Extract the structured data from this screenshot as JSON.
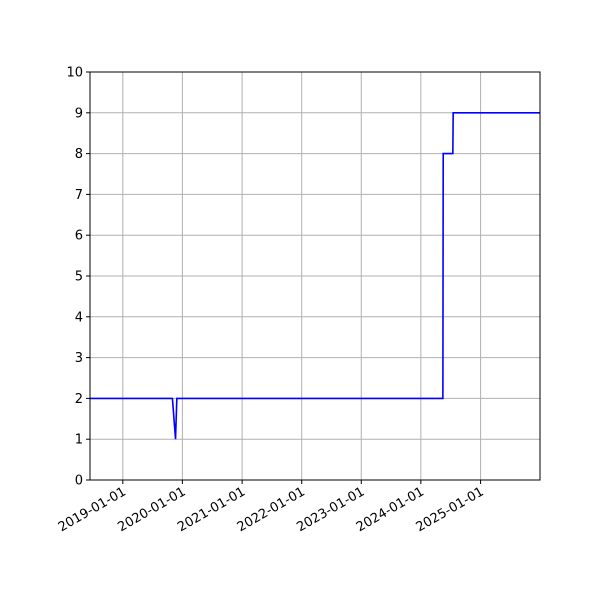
{
  "chart_data": {
    "type": "line",
    "title": "",
    "xlabel": "",
    "ylabel": "",
    "x_axis_type": "date",
    "xlim": [
      "2018-06-14",
      "2025-12-31"
    ],
    "ylim": [
      0,
      10
    ],
    "grid": true,
    "x_ticks": [
      "2019-01-01",
      "2020-01-01",
      "2021-01-01",
      "2022-01-01",
      "2023-01-01",
      "2024-01-01",
      "2025-01-01"
    ],
    "y_ticks": [
      "0",
      "1",
      "2",
      "3",
      "4",
      "5",
      "6",
      "7",
      "8",
      "9",
      "10"
    ],
    "series": [
      {
        "color": "#0000ff",
        "x": [
          "2018-06-14",
          "2019-11-01",
          "2019-11-20",
          "2019-11-28",
          "2024-05-15",
          "2024-05-17",
          "2024-07-15",
          "2024-07-17",
          "2025-12-31"
        ],
        "y": [
          2,
          2,
          1,
          2,
          2,
          8,
          8,
          9,
          9
        ]
      }
    ]
  }
}
